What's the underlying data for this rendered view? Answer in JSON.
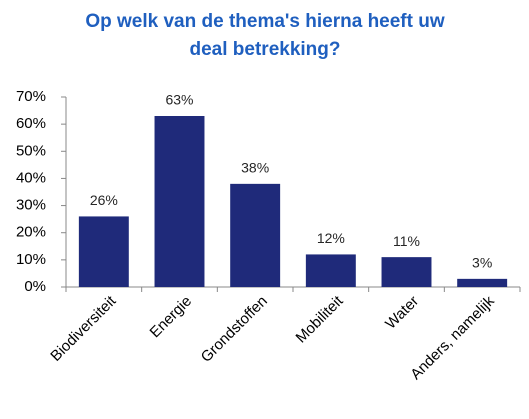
{
  "chart_data": {
    "type": "bar",
    "title": "Op welk van de thema's hierna heeft uw deal betrekking?",
    "categories": [
      "Biodiversiteit",
      "Energie",
      "Grondstoffen",
      "Mobiliteit",
      "Water",
      "Anders, namelijk"
    ],
    "values": [
      26,
      63,
      38,
      12,
      11,
      3
    ],
    "value_labels": [
      "26%",
      "63%",
      "38%",
      "12%",
      "11%",
      "3%"
    ],
    "color": "#1f2a7a",
    "ylim": [
      0,
      70
    ],
    "yticks": [
      {
        "value": 0,
        "label": "0%"
      },
      {
        "value": 10,
        "label": "10%"
      },
      {
        "value": 20,
        "label": "20%"
      },
      {
        "value": 30,
        "label": "30%"
      },
      {
        "value": 40,
        "label": "40%"
      },
      {
        "value": 50,
        "label": "50%"
      },
      {
        "value": 60,
        "label": "60%"
      },
      {
        "value": 70,
        "label": "70%"
      }
    ],
    "grid": false
  }
}
